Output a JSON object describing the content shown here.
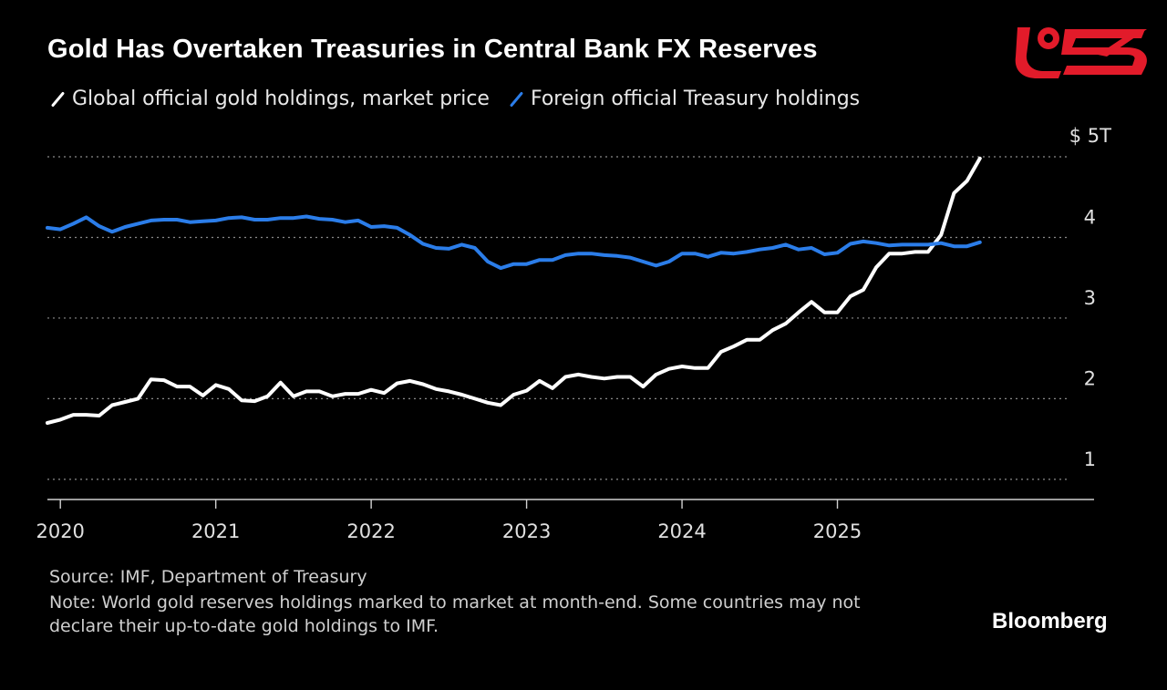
{
  "title": "Gold Has Overtaken Treasuries in Central Bank FX Reserves",
  "legend": [
    {
      "label": "Global official gold holdings, market price",
      "color": "#ffffff"
    },
    {
      "label": "Foreign official Treasury holdings",
      "color": "#2b7de9"
    }
  ],
  "source": "Source: IMF, Department of Treasury",
  "note": "Note: World gold reserves holdings marked to market at month-end. Some countries may not declare their up-to-date gold holdings to IMF.",
  "brand": "Bloomberg",
  "logo_icon": "red-s-publisher-logo",
  "chart_data": {
    "type": "line",
    "title": "Gold Has Overtaken Treasuries in Central Bank FX Reserves",
    "xlabel": "",
    "ylabel": "",
    "x_range": [
      "2019-12",
      "2026-06"
    ],
    "ylim": [
      0.75,
      5
    ],
    "y_ticks": [
      {
        "value": 5,
        "label": "$ 5T"
      },
      {
        "value": 4,
        "label": "4"
      },
      {
        "value": 3,
        "label": "3"
      },
      {
        "value": 2,
        "label": "2"
      },
      {
        "value": 1,
        "label": "1"
      }
    ],
    "x_ticks": [
      "2020",
      "2021",
      "2022",
      "2023",
      "2024",
      "2025"
    ],
    "grid": "horizontal dotted",
    "legend_position": "top-left",
    "series": [
      {
        "name": "Global official gold holdings, market price",
        "color": "#ffffff",
        "points": [
          [
            "2019-12",
            1.7
          ],
          [
            "2020-01",
            1.74
          ],
          [
            "2020-02",
            1.8
          ],
          [
            "2020-03",
            1.8
          ],
          [
            "2020-04",
            1.79
          ],
          [
            "2020-05",
            1.92
          ],
          [
            "2020-06",
            1.96
          ],
          [
            "2020-07",
            2.0
          ],
          [
            "2020-08",
            2.24
          ],
          [
            "2020-09",
            2.23
          ],
          [
            "2020-10",
            2.15
          ],
          [
            "2020-11",
            2.15
          ],
          [
            "2020-12",
            2.04
          ],
          [
            "2021-01",
            2.17
          ],
          [
            "2021-02",
            2.12
          ],
          [
            "2021-03",
            1.98
          ],
          [
            "2021-04",
            1.97
          ],
          [
            "2021-05",
            2.03
          ],
          [
            "2021-06",
            2.2
          ],
          [
            "2021-07",
            2.03
          ],
          [
            "2021-08",
            2.09
          ],
          [
            "2021-09",
            2.09
          ],
          [
            "2021-10",
            2.03
          ],
          [
            "2021-11",
            2.06
          ],
          [
            "2021-12",
            2.06
          ],
          [
            "2022-01",
            2.11
          ],
          [
            "2022-02",
            2.07
          ],
          [
            "2022-03",
            2.19
          ],
          [
            "2022-04",
            2.22
          ],
          [
            "2022-05",
            2.18
          ],
          [
            "2022-06",
            2.12
          ],
          [
            "2022-07",
            2.09
          ],
          [
            "2022-08",
            2.05
          ],
          [
            "2022-09",
            2.0
          ],
          [
            "2022-10",
            1.95
          ],
          [
            "2022-11",
            1.92
          ],
          [
            "2022-12",
            2.05
          ],
          [
            "2023-01",
            2.1
          ],
          [
            "2023-02",
            2.22
          ],
          [
            "2023-03",
            2.13
          ],
          [
            "2023-04",
            2.27
          ],
          [
            "2023-05",
            2.3
          ],
          [
            "2023-06",
            2.27
          ],
          [
            "2023-07",
            2.25
          ],
          [
            "2023-08",
            2.27
          ],
          [
            "2023-09",
            2.27
          ],
          [
            "2023-10",
            2.15
          ],
          [
            "2023-11",
            2.3
          ],
          [
            "2023-12",
            2.37
          ],
          [
            "2024-01",
            2.4
          ],
          [
            "2024-02",
            2.38
          ],
          [
            "2024-03",
            2.38
          ],
          [
            "2024-04",
            2.58
          ],
          [
            "2024-05",
            2.65
          ],
          [
            "2024-06",
            2.73
          ],
          [
            "2024-07",
            2.73
          ],
          [
            "2024-08",
            2.85
          ],
          [
            "2024-09",
            2.93
          ],
          [
            "2024-10",
            3.07
          ],
          [
            "2024-11",
            3.2
          ],
          [
            "2024-12",
            3.07
          ],
          [
            "2025-01",
            3.07
          ],
          [
            "2025-02",
            3.27
          ],
          [
            "2025-03",
            3.35
          ],
          [
            "2025-04",
            3.63
          ],
          [
            "2025-05",
            3.8
          ],
          [
            "2025-06",
            3.8
          ],
          [
            "2025-07",
            3.82
          ],
          [
            "2025-08",
            3.82
          ],
          [
            "2025-09",
            4.03
          ],
          [
            "2025-10",
            4.55
          ],
          [
            "2025-11",
            4.7
          ],
          [
            "2025-12",
            4.98
          ]
        ]
      },
      {
        "name": "Foreign official Treasury holdings",
        "color": "#2b7de9",
        "points": [
          [
            "2019-12",
            4.12
          ],
          [
            "2020-01",
            4.1
          ],
          [
            "2020-02",
            4.17
          ],
          [
            "2020-03",
            4.25
          ],
          [
            "2020-04",
            4.14
          ],
          [
            "2020-05",
            4.07
          ],
          [
            "2020-06",
            4.13
          ],
          [
            "2020-07",
            4.17
          ],
          [
            "2020-08",
            4.21
          ],
          [
            "2020-09",
            4.22
          ],
          [
            "2020-10",
            4.22
          ],
          [
            "2020-11",
            4.19
          ],
          [
            "2020-12",
            4.2
          ],
          [
            "2021-01",
            4.21
          ],
          [
            "2021-02",
            4.24
          ],
          [
            "2021-03",
            4.25
          ],
          [
            "2021-04",
            4.22
          ],
          [
            "2021-05",
            4.22
          ],
          [
            "2021-06",
            4.24
          ],
          [
            "2021-07",
            4.24
          ],
          [
            "2021-08",
            4.26
          ],
          [
            "2021-09",
            4.23
          ],
          [
            "2021-10",
            4.22
          ],
          [
            "2021-11",
            4.19
          ],
          [
            "2021-12",
            4.21
          ],
          [
            "2022-01",
            4.13
          ],
          [
            "2022-02",
            4.14
          ],
          [
            "2022-03",
            4.12
          ],
          [
            "2022-04",
            4.03
          ],
          [
            "2022-05",
            3.92
          ],
          [
            "2022-06",
            3.87
          ],
          [
            "2022-07",
            3.86
          ],
          [
            "2022-08",
            3.91
          ],
          [
            "2022-09",
            3.87
          ],
          [
            "2022-10",
            3.7
          ],
          [
            "2022-11",
            3.62
          ],
          [
            "2022-12",
            3.67
          ],
          [
            "2023-01",
            3.67
          ],
          [
            "2023-02",
            3.72
          ],
          [
            "2023-03",
            3.72
          ],
          [
            "2023-04",
            3.78
          ],
          [
            "2023-05",
            3.8
          ],
          [
            "2023-06",
            3.8
          ],
          [
            "2023-07",
            3.78
          ],
          [
            "2023-08",
            3.77
          ],
          [
            "2023-09",
            3.75
          ],
          [
            "2023-10",
            3.7
          ],
          [
            "2023-11",
            3.65
          ],
          [
            "2023-12",
            3.7
          ],
          [
            "2024-01",
            3.8
          ],
          [
            "2024-02",
            3.8
          ],
          [
            "2024-03",
            3.76
          ],
          [
            "2024-04",
            3.81
          ],
          [
            "2024-05",
            3.8
          ],
          [
            "2024-06",
            3.82
          ],
          [
            "2024-07",
            3.85
          ],
          [
            "2024-08",
            3.87
          ],
          [
            "2024-09",
            3.91
          ],
          [
            "2024-10",
            3.85
          ],
          [
            "2024-11",
            3.87
          ],
          [
            "2024-12",
            3.79
          ],
          [
            "2025-01",
            3.81
          ],
          [
            "2025-02",
            3.92
          ],
          [
            "2025-03",
            3.95
          ],
          [
            "2025-04",
            3.93
          ],
          [
            "2025-05",
            3.9
          ],
          [
            "2025-06",
            3.91
          ],
          [
            "2025-07",
            3.91
          ],
          [
            "2025-08",
            3.91
          ],
          [
            "2025-09",
            3.93
          ],
          [
            "2025-10",
            3.89
          ],
          [
            "2025-11",
            3.89
          ],
          [
            "2025-12",
            3.94
          ]
        ]
      }
    ]
  }
}
